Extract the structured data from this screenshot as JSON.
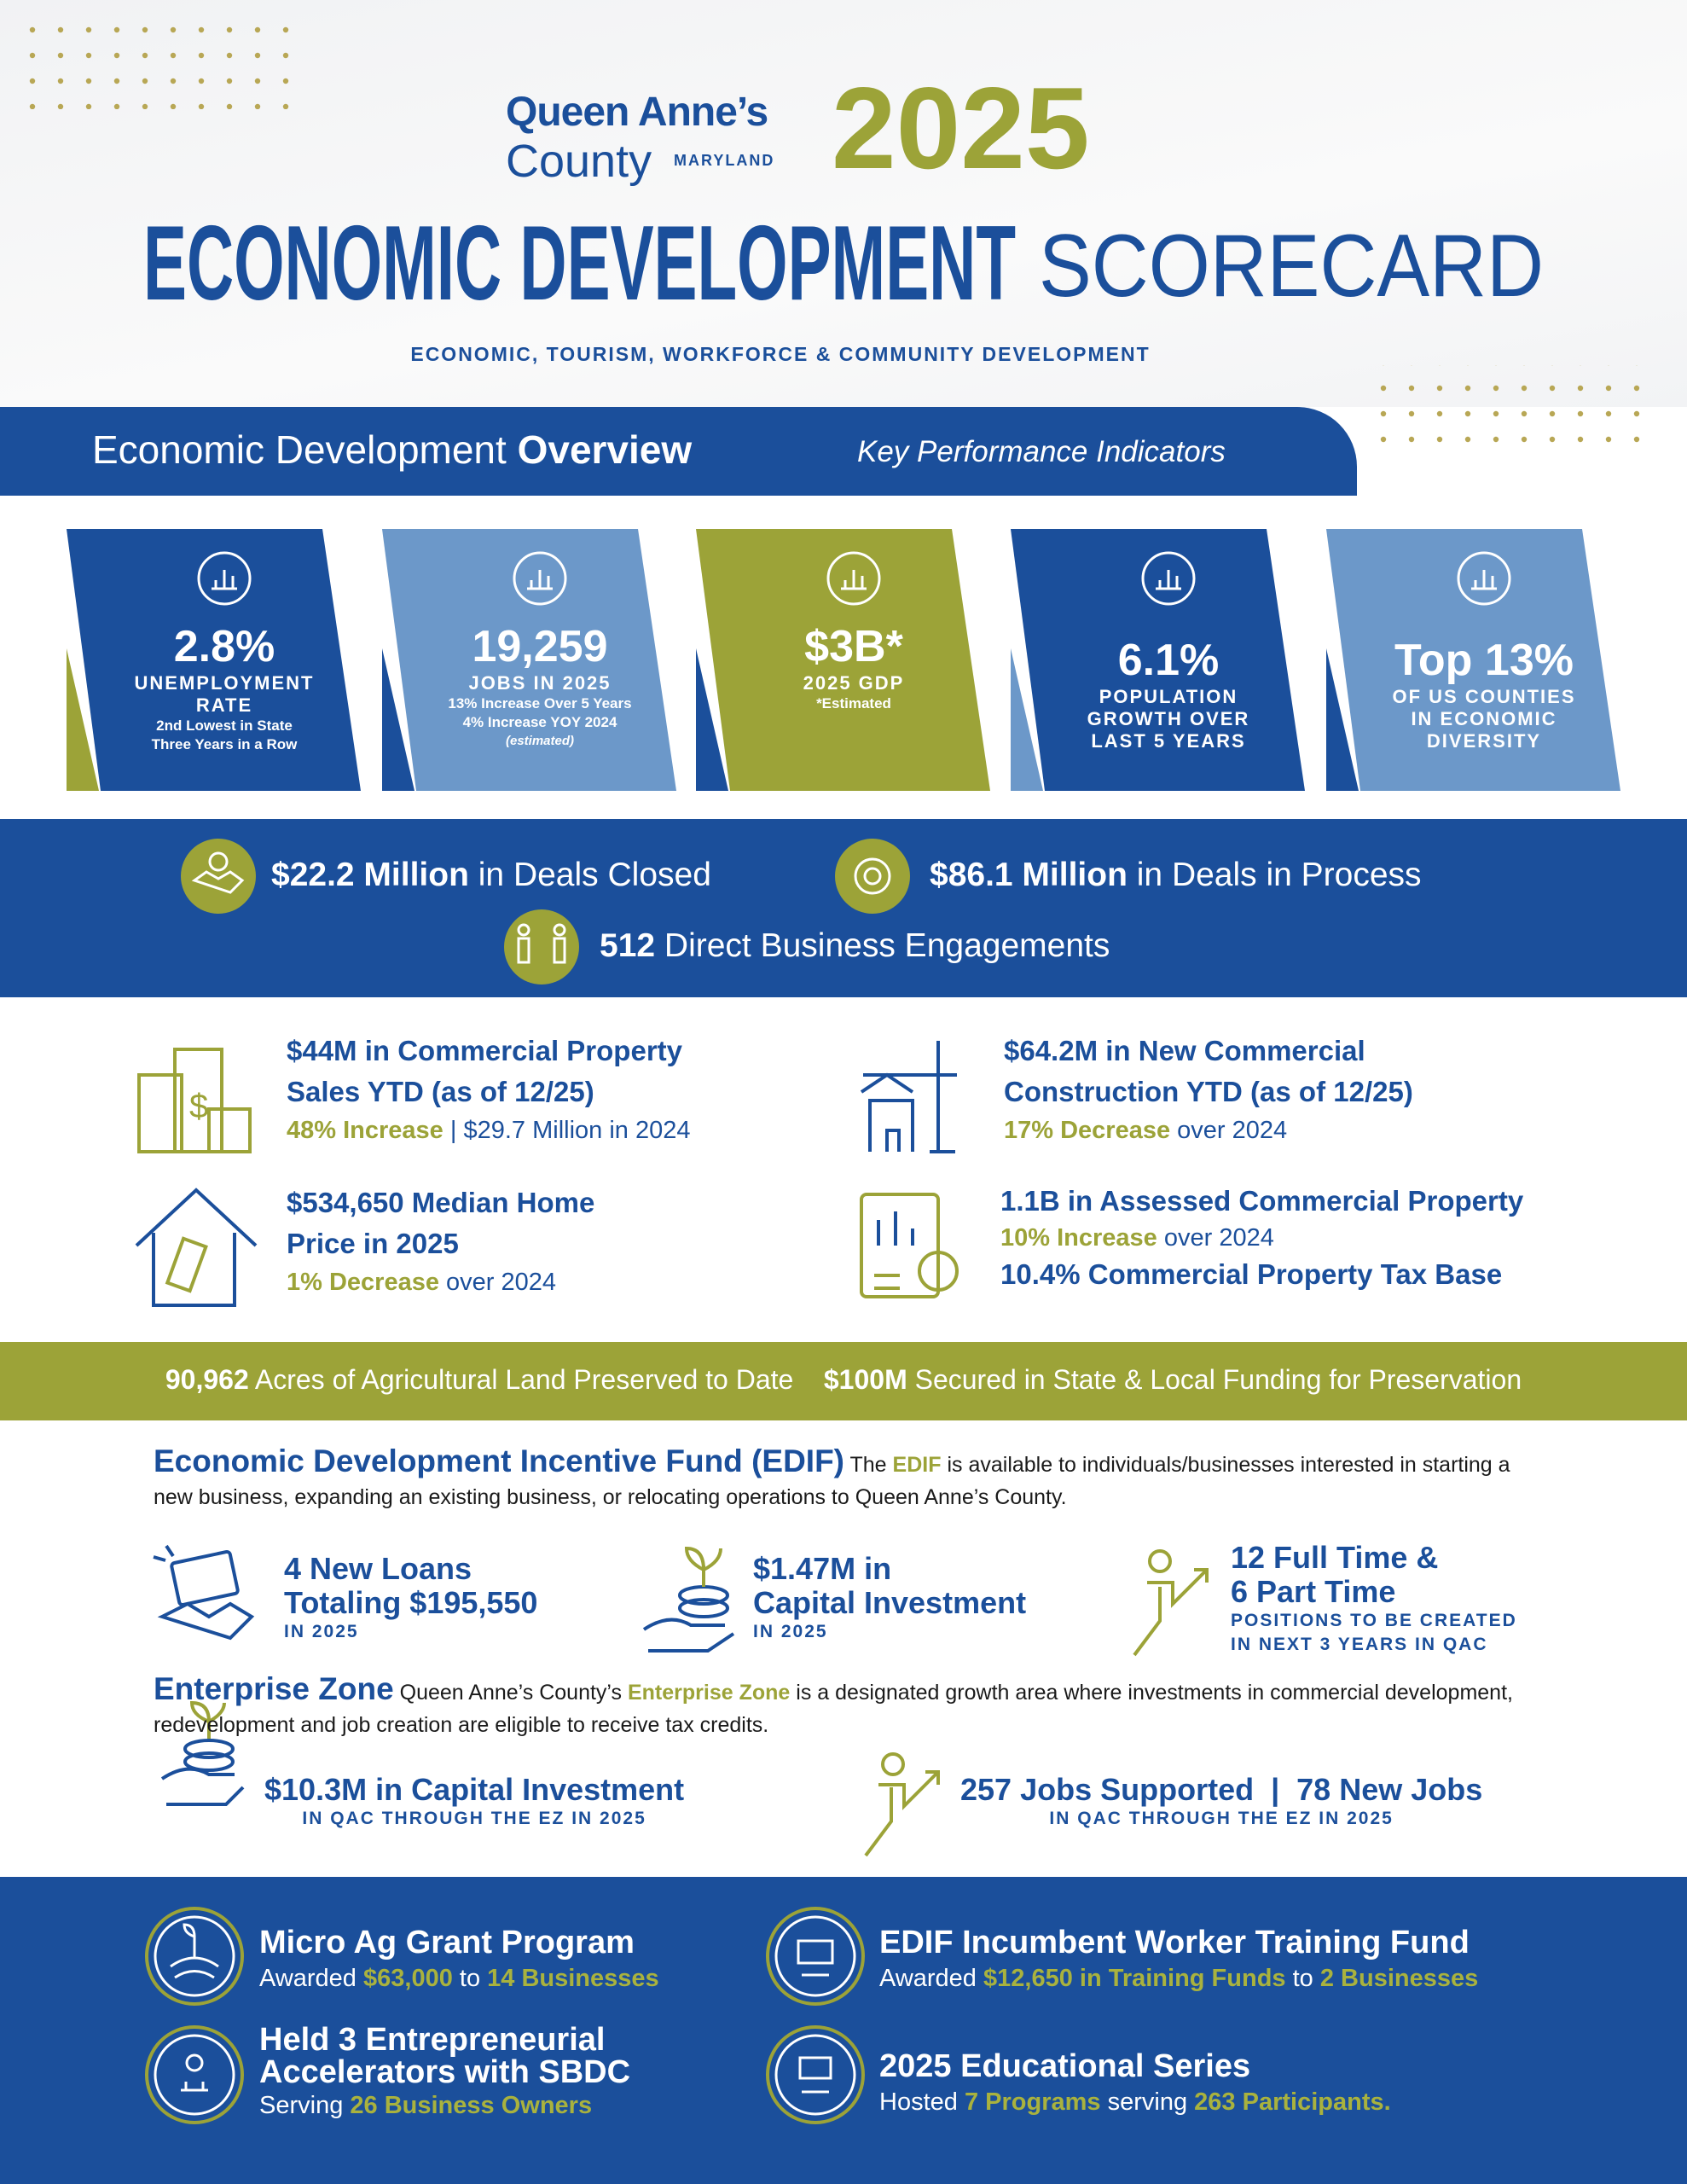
{
  "header": {
    "brand_line1": "Queen Anne’s",
    "brand_line2": "County",
    "brand_state": "MARYLAND",
    "year": "2025",
    "title_bold": "ECONOMIC DEVELOPMENT",
    "title_light": "SCORECARD",
    "subtitle": "ECONOMIC, TOURISM, WORKFORCE & COMMUNITY DEVELOPMENT"
  },
  "overview": {
    "title_light": "Economic Development",
    "title_bold": "Overview",
    "title_italic": "Key Performance Indicators"
  },
  "kpis": [
    {
      "value": "2.8%",
      "label": [
        "UNEMPLOYMENT",
        "RATE"
      ],
      "notes": [
        "2nd Lowest in State",
        "Three Years in a Row"
      ]
    },
    {
      "value": "19,259",
      "label": [
        "JOBS IN 2025"
      ],
      "notes": [
        "13% Increase Over 5 Years",
        "4% Increase YOY 2024",
        "(estimated)"
      ]
    },
    {
      "value": "$3B*",
      "label": [
        "2025 GDP"
      ],
      "notes": [
        "*Estimated"
      ]
    },
    {
      "value": "6.1%",
      "label": [
        "POPULATION",
        "GROWTH OVER",
        "LAST 5 YEARS"
      ],
      "notes": []
    },
    {
      "value": "Top 13%",
      "label": [
        "OF US COUNTIES",
        "IN ECONOMIC",
        "DIVERSITY"
      ],
      "notes": []
    }
  ],
  "deals": [
    {
      "bold": "$22.2 Million",
      "text": "in Deals Closed"
    },
    {
      "bold": "$86.1 Million",
      "text": "in Deals in Process"
    },
    {
      "bold": "512",
      "text": "Direct Business Engagements"
    }
  ],
  "property": [
    {
      "title": [
        "$44M in Commercial Property",
        "Sales YTD (as of 12/25)"
      ],
      "change": "48% Increase",
      "note": "|  $29.7 Million in 2024"
    },
    {
      "title": [
        "$64.2M in New Commercial",
        "Construction YTD (as of 12/25)"
      ],
      "change": "17% Decrease",
      "note": "over 2024"
    },
    {
      "title": [
        "$534,650 Median Home",
        "Price in 2025"
      ],
      "change": "1% Decrease",
      "note": "over 2024"
    },
    {
      "title": [
        "1.1B in Assessed Commercial Property"
      ],
      "change": "10% Increase",
      "note": "over 2024",
      "extra": "10.4% Commercial Property Tax Base"
    }
  ],
  "agriculture": [
    {
      "bold": "90,962",
      "text": "Acres of Agricultural Land Preserved to Date"
    },
    {
      "bold": "$100M",
      "text": "Secured in State & Local Funding for Preservation"
    }
  ],
  "edif": {
    "heading": "Economic Development Incentive Fund (EDIF)",
    "body_pre": "The",
    "body_highlight": "EDIF",
    "body_post": "is available to individuals/businesses interested in starting a new business, expanding an existing business, or relocating operations to Queen Anne’s County.",
    "stats": [
      {
        "title": [
          "4 New Loans",
          "Totaling $195,550"
        ],
        "sub": [
          "IN 2025"
        ]
      },
      {
        "title": [
          "$1.47M in",
          "Capital Investment"
        ],
        "sub": [
          "IN 2025"
        ]
      },
      {
        "title": [
          "12 Full Time &",
          "6 Part Time"
        ],
        "sub": [
          "POSITIONS TO BE CREATED",
          "IN NEXT 3 YEARS IN QAC"
        ]
      }
    ]
  },
  "enterprise_zone": {
    "heading": "Enterprise Zone",
    "body_pre": "Queen Anne’s County’s",
    "body_highlight": "Enterprise Zone",
    "body_post": "is a designated growth area where investments in commercial development, redevelopment and job creation are eligible to receive tax credits.",
    "stats": [
      {
        "title": "$10.3M in Capital Investment",
        "sub": "IN QAC THROUGH THE EZ IN 2025"
      },
      {
        "title": "257 Jobs Supported  |  78 New Jobs",
        "sub": "IN QAC THROUGH THE EZ IN 2025"
      }
    ]
  },
  "programs": [
    {
      "title": [
        "Micro Ag Grant Program"
      ],
      "text1": "Awarded",
      "highlight1": "$63,000",
      "text2": "to",
      "highlight2": "14 Businesses"
    },
    {
      "title": [
        "EDIF Incumbent Worker Training Fund"
      ],
      "text1": "Awarded",
      "highlight1": "$12,650 in Training Funds",
      "text2": "to",
      "highlight2": "2 Businesses"
    },
    {
      "title": [
        "Held 3 Entrepreneurial",
        "Accelerators with SBDC"
      ],
      "text1": "Serving",
      "highlight1": "26 Business Owners"
    },
    {
      "title": [
        "2025 Educational Series"
      ],
      "text1": "Hosted",
      "highlight1": "7 Programs",
      "text2": "serving",
      "highlight2": "263 Participants."
    }
  ]
}
